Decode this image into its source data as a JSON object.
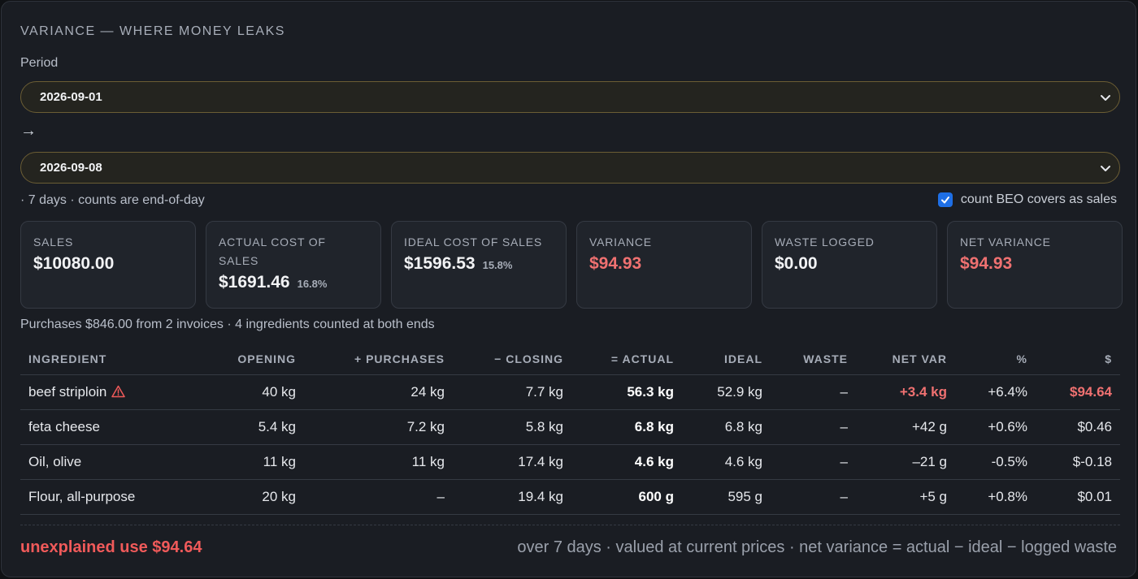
{
  "title": "VARIANCE — WHERE MONEY LEAKS",
  "period": {
    "label": "Period",
    "start": "2026-09-01",
    "arrow": "→",
    "end": "2026-09-08",
    "meta": "· 7 days · counts are end-of-day",
    "beo_label": "count BEO covers as sales",
    "beo_checked": true
  },
  "cards": [
    {
      "label": "SALES",
      "value": "$10080.00",
      "pct": ""
    },
    {
      "label": "ACTUAL COST OF SALES",
      "value": "$1691.46",
      "pct": "16.8%"
    },
    {
      "label": "IDEAL COST OF SALES",
      "value": "$1596.53",
      "pct": "15.8%"
    },
    {
      "label": "VARIANCE",
      "value": "$94.93",
      "pct": ""
    },
    {
      "label": "WASTE LOGGED",
      "value": "$0.00",
      "pct": ""
    },
    {
      "label": "NET VARIANCE",
      "value": "$94.93",
      "pct": ""
    }
  ],
  "purchases_summary": "Purchases $846.00 from 2 invoices · 4 ingredients counted at both ends",
  "table": {
    "headers": [
      "INGREDIENT",
      "OPENING",
      "+ PURCHASES",
      "− CLOSING",
      "= ACTUAL",
      "IDEAL",
      "WASTE",
      "NET VAR",
      "%",
      "$"
    ],
    "rows": [
      {
        "ingredient": "beef striploin",
        "warning": true,
        "opening": "40 kg",
        "purchases": "24 kg",
        "closing": "7.7 kg",
        "actual": "56.3 kg",
        "ideal": "52.9 kg",
        "waste": "–",
        "net_var": "+3.4 kg",
        "pct": "+6.4%",
        "dollars": "$94.64"
      },
      {
        "ingredient": "feta cheese",
        "warning": false,
        "opening": "5.4 kg",
        "purchases": "7.2 kg",
        "closing": "5.8 kg",
        "actual": "6.8 kg",
        "ideal": "6.8 kg",
        "waste": "–",
        "net_var": "+42 g",
        "pct": "+0.6%",
        "dollars": "$0.46"
      },
      {
        "ingredient": "Oil, olive",
        "warning": false,
        "opening": "11 kg",
        "purchases": "11 kg",
        "closing": "17.4 kg",
        "actual": "4.6 kg",
        "ideal": "4.6 kg",
        "waste": "–",
        "net_var": "–21 g",
        "pct": "-0.5%",
        "dollars": "$-0.18"
      },
      {
        "ingredient": "Flour, all-purpose",
        "warning": false,
        "opening": "20 kg",
        "purchases": "–",
        "closing": "19.4 kg",
        "actual": "600 g",
        "ideal": "595 g",
        "waste": "–",
        "net_var": "+5 g",
        "pct": "+0.8%",
        "dollars": "$0.01"
      }
    ]
  },
  "footer": {
    "unexplained": "unexplained use $94.64",
    "note": "over 7 days · valued at current prices · net variance = actual − ideal − logged waste"
  },
  "colors": {
    "alert": "#f07171",
    "accent": "#1e6fe6",
    "select_border": "#6b5d34"
  }
}
